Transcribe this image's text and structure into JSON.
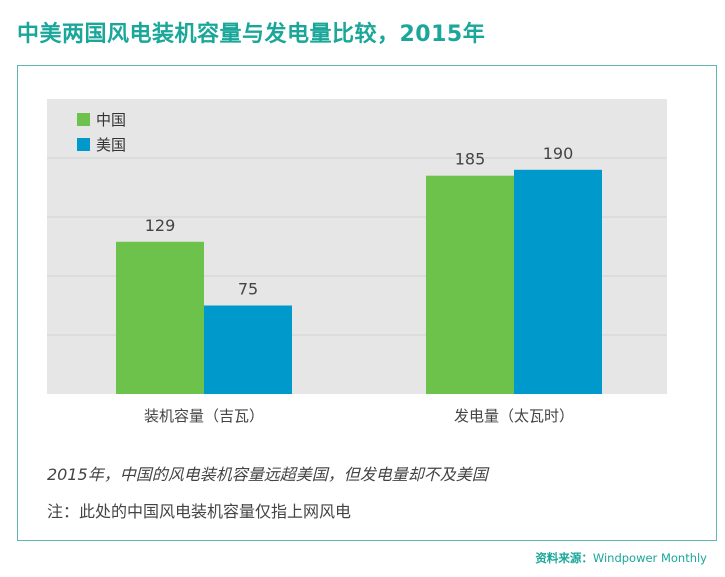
{
  "header": {
    "title": "中美两国风电装机容量与发电量比较，2015年"
  },
  "chart_data": {
    "type": "bar",
    "categories": [
      "装机容量（吉瓦）",
      "发电量（太瓦时）"
    ],
    "series": [
      {
        "name": "中国",
        "values": [
          129,
          185
        ],
        "color": "#6cc24a"
      },
      {
        "name": "美国",
        "values": [
          75,
          190
        ],
        "color": "#0099cc"
      }
    ],
    "title": "中美两国风电装机容量与发电量比较，2015年",
    "xlabel": "",
    "ylabel": "",
    "ylim": [
      0,
      250
    ],
    "grid": true,
    "legend": "top-left",
    "plot_background": "#e6e6e6"
  },
  "notes": {
    "main": "2015年，中国的风电装机容量远超美国，但发电量却不及美国",
    "sub": "注：此处的中国风电装机容量仅指上网风电"
  },
  "source": {
    "label": "资料来源：",
    "value": "Windpower Monthly"
  }
}
